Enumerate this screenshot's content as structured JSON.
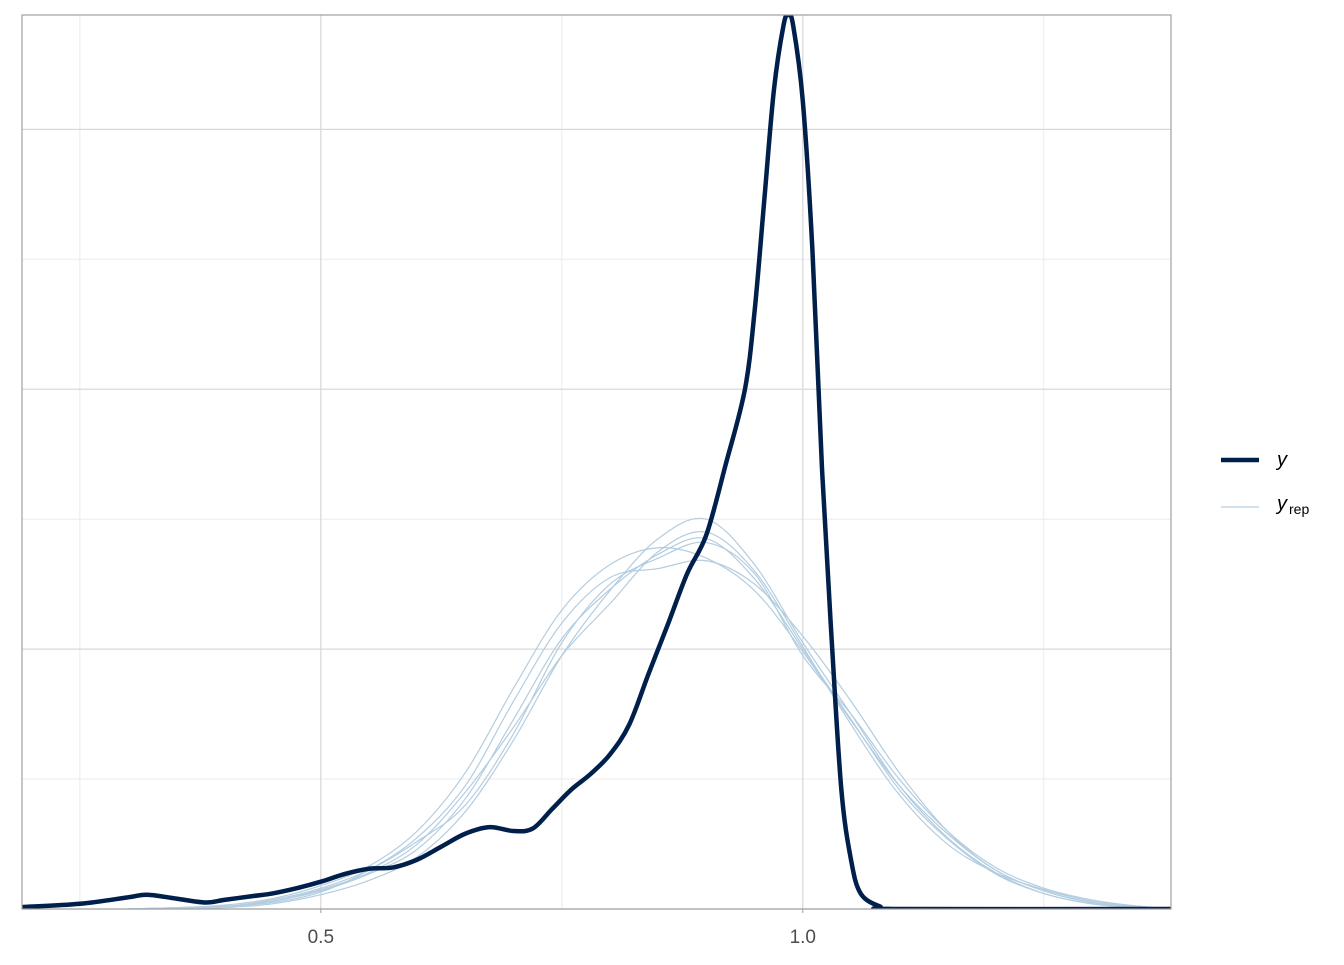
{
  "chart_data": {
    "type": "line",
    "x": [
      0.19,
      0.25,
      0.3,
      0.32,
      0.35,
      0.38,
      0.4,
      0.43,
      0.45,
      0.475,
      0.5,
      0.525,
      0.55,
      0.575,
      0.6,
      0.625,
      0.65,
      0.675,
      0.7,
      0.72,
      0.74,
      0.76,
      0.78,
      0.8,
      0.82,
      0.84,
      0.86,
      0.88,
      0.9,
      0.92,
      0.94,
      0.95,
      0.96,
      0.97,
      0.98,
      0.985,
      0.99,
      1.0,
      1.01,
      1.02,
      1.03,
      1.04,
      1.05,
      1.06,
      1.08,
      1.1,
      1.382
    ],
    "series": [
      {
        "name": "y",
        "color": "#011f4b",
        "width": 4.5,
        "values": [
          0.015,
          0.04,
          0.09,
          0.11,
          0.08,
          0.05,
          0.07,
          0.1,
          0.12,
          0.16,
          0.21,
          0.27,
          0.31,
          0.32,
          0.38,
          0.48,
          0.58,
          0.63,
          0.6,
          0.62,
          0.77,
          0.92,
          1.04,
          1.19,
          1.42,
          1.81,
          2.19,
          2.58,
          2.88,
          3.42,
          4.0,
          4.6,
          5.45,
          6.3,
          6.8,
          6.88,
          6.8,
          6.22,
          5.07,
          3.38,
          2.07,
          0.92,
          0.38,
          0.12,
          0.02,
          0.0,
          0.0
        ]
      }
    ],
    "replicates": {
      "name": "y",
      "subscript": "rep",
      "color": "#b3cde0",
      "width": 1.2,
      "x": [
        0.3,
        0.35,
        0.4,
        0.45,
        0.5,
        0.55,
        0.6,
        0.65,
        0.7,
        0.75,
        0.8,
        0.85,
        0.9,
        0.95,
        1.0,
        1.05,
        1.1,
        1.15,
        1.2,
        1.25,
        1.3,
        1.35,
        1.38
      ],
      "values": [
        [
          0,
          0.01,
          0.02,
          0.06,
          0.14,
          0.27,
          0.46,
          0.85,
          1.46,
          2.08,
          2.46,
          2.73,
          2.85,
          2.54,
          2.0,
          1.46,
          0.92,
          0.54,
          0.27,
          0.12,
          0.04,
          0.01,
          0
        ],
        [
          0,
          0.01,
          0.03,
          0.08,
          0.18,
          0.33,
          0.6,
          1.05,
          1.7,
          2.3,
          2.65,
          2.78,
          2.7,
          2.45,
          1.98,
          1.45,
          0.95,
          0.58,
          0.3,
          0.14,
          0.05,
          0.01,
          0
        ],
        [
          0,
          0,
          0.01,
          0.04,
          0.11,
          0.22,
          0.4,
          0.75,
          1.3,
          1.95,
          2.45,
          2.85,
          3.0,
          2.65,
          2.05,
          1.5,
          0.95,
          0.55,
          0.28,
          0.12,
          0.04,
          0.01,
          0
        ],
        [
          0,
          0.01,
          0.02,
          0.05,
          0.13,
          0.3,
          0.55,
          0.95,
          1.6,
          2.2,
          2.55,
          2.62,
          2.68,
          2.5,
          2.1,
          1.6,
          1.05,
          0.6,
          0.3,
          0.14,
          0.05,
          0.02,
          0
        ],
        [
          0,
          0,
          0.02,
          0.06,
          0.15,
          0.28,
          0.5,
          0.9,
          1.4,
          1.95,
          2.35,
          2.75,
          2.9,
          2.6,
          2.02,
          1.42,
          0.88,
          0.5,
          0.28,
          0.15,
          0.06,
          0.02,
          0
        ],
        [
          0,
          0.01,
          0.02,
          0.07,
          0.16,
          0.3,
          0.52,
          0.8,
          1.35,
          2.05,
          2.5,
          2.7,
          2.82,
          2.58,
          1.95,
          1.5,
          1.0,
          0.6,
          0.32,
          0.16,
          0.07,
          0.02,
          0
        ]
      ]
    },
    "xlim": [
      0.19,
      1.382
    ],
    "ylim": [
      0,
      6.88
    ],
    "xticks": [
      0.5,
      {
        "value": 1,
        "label": "1.0"
      }
    ],
    "xminor": [
      0.25,
      0.75,
      1.25
    ],
    "yticks": [
      0,
      2,
      4,
      6
    ],
    "yminor": [
      1,
      3,
      5
    ],
    "grid": true,
    "legend": "right"
  }
}
